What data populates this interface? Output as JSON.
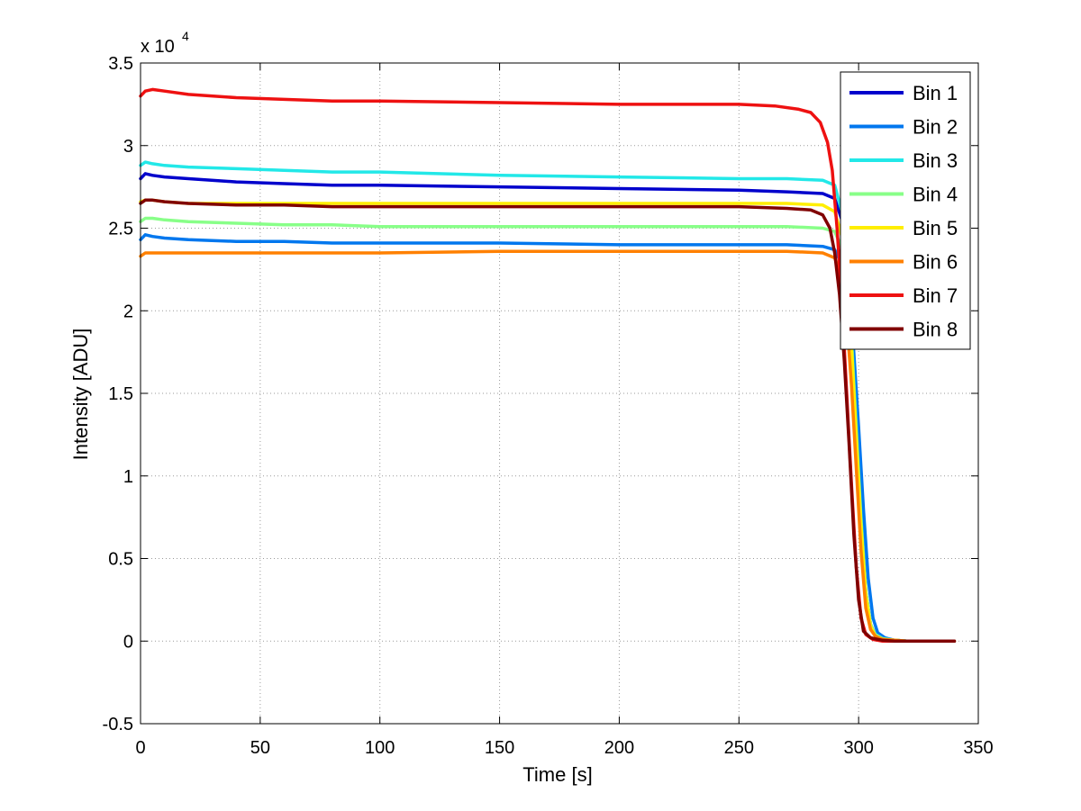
{
  "chart_data": {
    "type": "line",
    "title": "",
    "xlabel": "Time [s]",
    "ylabel": "Intensity [ADU]",
    "xlim": [
      0,
      350
    ],
    "ylim": [
      -0.5,
      3.5
    ],
    "y_multiplier_text": "x 10",
    "y_multiplier_exponent": "4",
    "grid": true,
    "legend_position": "top-right",
    "x_ticks": [
      0,
      50,
      100,
      150,
      200,
      250,
      300,
      350
    ],
    "x_tick_labels": [
      "0",
      "50",
      "100",
      "150",
      "200",
      "250",
      "300",
      "350"
    ],
    "y_ticks": [
      -0.5,
      0,
      0.5,
      1,
      1.5,
      2,
      2.5,
      3,
      3.5
    ],
    "y_tick_labels": [
      "-0.5",
      "0",
      "0.5",
      "1",
      "1.5",
      "2",
      "2.5",
      "3",
      "3.5"
    ],
    "series": [
      {
        "name": "Bin 1",
        "color": "#0000cc",
        "x": [
          0,
          2,
          5,
          10,
          20,
          40,
          60,
          80,
          100,
          150,
          200,
          250,
          270,
          285,
          290,
          293,
          295,
          297,
          299,
          301,
          303,
          305,
          307,
          310,
          315,
          320,
          330,
          340
        ],
        "values": [
          2.8,
          2.83,
          2.82,
          2.81,
          2.8,
          2.78,
          2.77,
          2.76,
          2.76,
          2.75,
          2.74,
          2.73,
          2.72,
          2.71,
          2.68,
          2.55,
          2.3,
          1.85,
          1.3,
          0.75,
          0.3,
          0.1,
          0.04,
          0.015,
          0.005,
          0.0,
          0.0,
          0.0
        ]
      },
      {
        "name": "Bin 2",
        "color": "#0077ee",
        "x": [
          0,
          2,
          5,
          10,
          20,
          40,
          60,
          80,
          100,
          150,
          200,
          250,
          270,
          285,
          290,
          293,
          296,
          298,
          300,
          302,
          304,
          306,
          308,
          311,
          315,
          320,
          330,
          340
        ],
        "values": [
          2.43,
          2.46,
          2.45,
          2.44,
          2.43,
          2.42,
          2.42,
          2.41,
          2.41,
          2.41,
          2.4,
          2.4,
          2.4,
          2.39,
          2.37,
          2.28,
          2.1,
          1.75,
          1.3,
          0.8,
          0.38,
          0.14,
          0.05,
          0.02,
          0.005,
          0.0,
          0.0,
          0.0
        ]
      },
      {
        "name": "Bin 3",
        "color": "#22e8e8",
        "x": [
          0,
          2,
          5,
          10,
          20,
          40,
          60,
          80,
          100,
          150,
          200,
          250,
          270,
          285,
          290,
          293,
          295,
          297,
          299,
          301,
          303,
          305,
          307,
          310,
          315,
          320,
          330,
          340
        ],
        "values": [
          2.88,
          2.9,
          2.89,
          2.88,
          2.87,
          2.86,
          2.85,
          2.84,
          2.84,
          2.82,
          2.81,
          2.8,
          2.8,
          2.79,
          2.76,
          2.6,
          2.3,
          1.85,
          1.3,
          0.75,
          0.3,
          0.1,
          0.04,
          0.015,
          0.005,
          0.0,
          0.0,
          0.0
        ]
      },
      {
        "name": "Bin 4",
        "color": "#88ff88",
        "x": [
          0,
          2,
          5,
          10,
          20,
          40,
          60,
          80,
          100,
          150,
          200,
          250,
          270,
          285,
          290,
          293,
          295,
          297,
          299,
          301,
          303,
          305,
          307,
          310,
          315,
          320,
          330,
          340
        ],
        "values": [
          2.54,
          2.56,
          2.56,
          2.55,
          2.54,
          2.53,
          2.52,
          2.52,
          2.51,
          2.51,
          2.51,
          2.51,
          2.51,
          2.5,
          2.48,
          2.38,
          2.15,
          1.75,
          1.25,
          0.72,
          0.3,
          0.1,
          0.04,
          0.015,
          0.005,
          0.0,
          0.0,
          0.0
        ]
      },
      {
        "name": "Bin 5",
        "color": "#ffee00",
        "x": [
          0,
          2,
          5,
          10,
          20,
          40,
          60,
          80,
          100,
          150,
          200,
          250,
          270,
          285,
          290,
          293,
          295,
          297,
          299,
          301,
          303,
          305,
          307,
          310,
          315,
          320,
          330,
          340
        ],
        "values": [
          2.66,
          2.67,
          2.67,
          2.66,
          2.65,
          2.65,
          2.65,
          2.65,
          2.65,
          2.65,
          2.65,
          2.65,
          2.65,
          2.64,
          2.6,
          2.45,
          2.2,
          1.8,
          1.25,
          0.7,
          0.28,
          0.09,
          0.03,
          0.01,
          0.005,
          0.0,
          0.0,
          0.0
        ]
      },
      {
        "name": "Bin 6",
        "color": "#ff8000",
        "x": [
          0,
          2,
          5,
          10,
          20,
          40,
          60,
          80,
          100,
          150,
          200,
          250,
          270,
          285,
          290,
          293,
          295,
          297,
          299,
          301,
          303,
          305,
          307,
          310,
          315,
          320,
          330,
          340
        ],
        "values": [
          2.33,
          2.35,
          2.35,
          2.35,
          2.35,
          2.35,
          2.35,
          2.35,
          2.35,
          2.36,
          2.36,
          2.36,
          2.36,
          2.35,
          2.32,
          2.2,
          1.95,
          1.55,
          1.05,
          0.55,
          0.2,
          0.07,
          0.03,
          0.01,
          0.005,
          0.0,
          0.0,
          0.0
        ]
      },
      {
        "name": "Bin 7",
        "color": "#ee1111",
        "x": [
          0,
          2,
          5,
          10,
          20,
          40,
          60,
          80,
          100,
          150,
          200,
          250,
          265,
          275,
          280,
          284,
          287,
          289,
          291,
          293,
          295,
          297,
          299,
          301,
          303,
          306,
          310,
          315,
          320,
          330,
          340
        ],
        "values": [
          3.3,
          3.33,
          3.34,
          3.33,
          3.31,
          3.29,
          3.28,
          3.27,
          3.27,
          3.26,
          3.25,
          3.25,
          3.24,
          3.22,
          3.2,
          3.14,
          3.02,
          2.85,
          2.5,
          2.05,
          1.5,
          0.95,
          0.45,
          0.14,
          0.04,
          0.01,
          0.0,
          0.0,
          0.0,
          0.0,
          0.0
        ]
      },
      {
        "name": "Bin 8",
        "color": "#800000",
        "x": [
          0,
          2,
          5,
          10,
          20,
          40,
          60,
          80,
          100,
          150,
          200,
          250,
          270,
          280,
          285,
          288,
          290,
          292,
          294,
          296,
          298,
          300,
          302,
          305,
          310,
          315,
          320,
          330,
          340
        ],
        "values": [
          2.65,
          2.67,
          2.67,
          2.66,
          2.65,
          2.64,
          2.64,
          2.63,
          2.63,
          2.63,
          2.63,
          2.63,
          2.62,
          2.61,
          2.58,
          2.5,
          2.35,
          2.1,
          1.7,
          1.2,
          0.65,
          0.25,
          0.06,
          0.02,
          0.005,
          0.0,
          0.0,
          0.0,
          0.0
        ]
      }
    ]
  }
}
